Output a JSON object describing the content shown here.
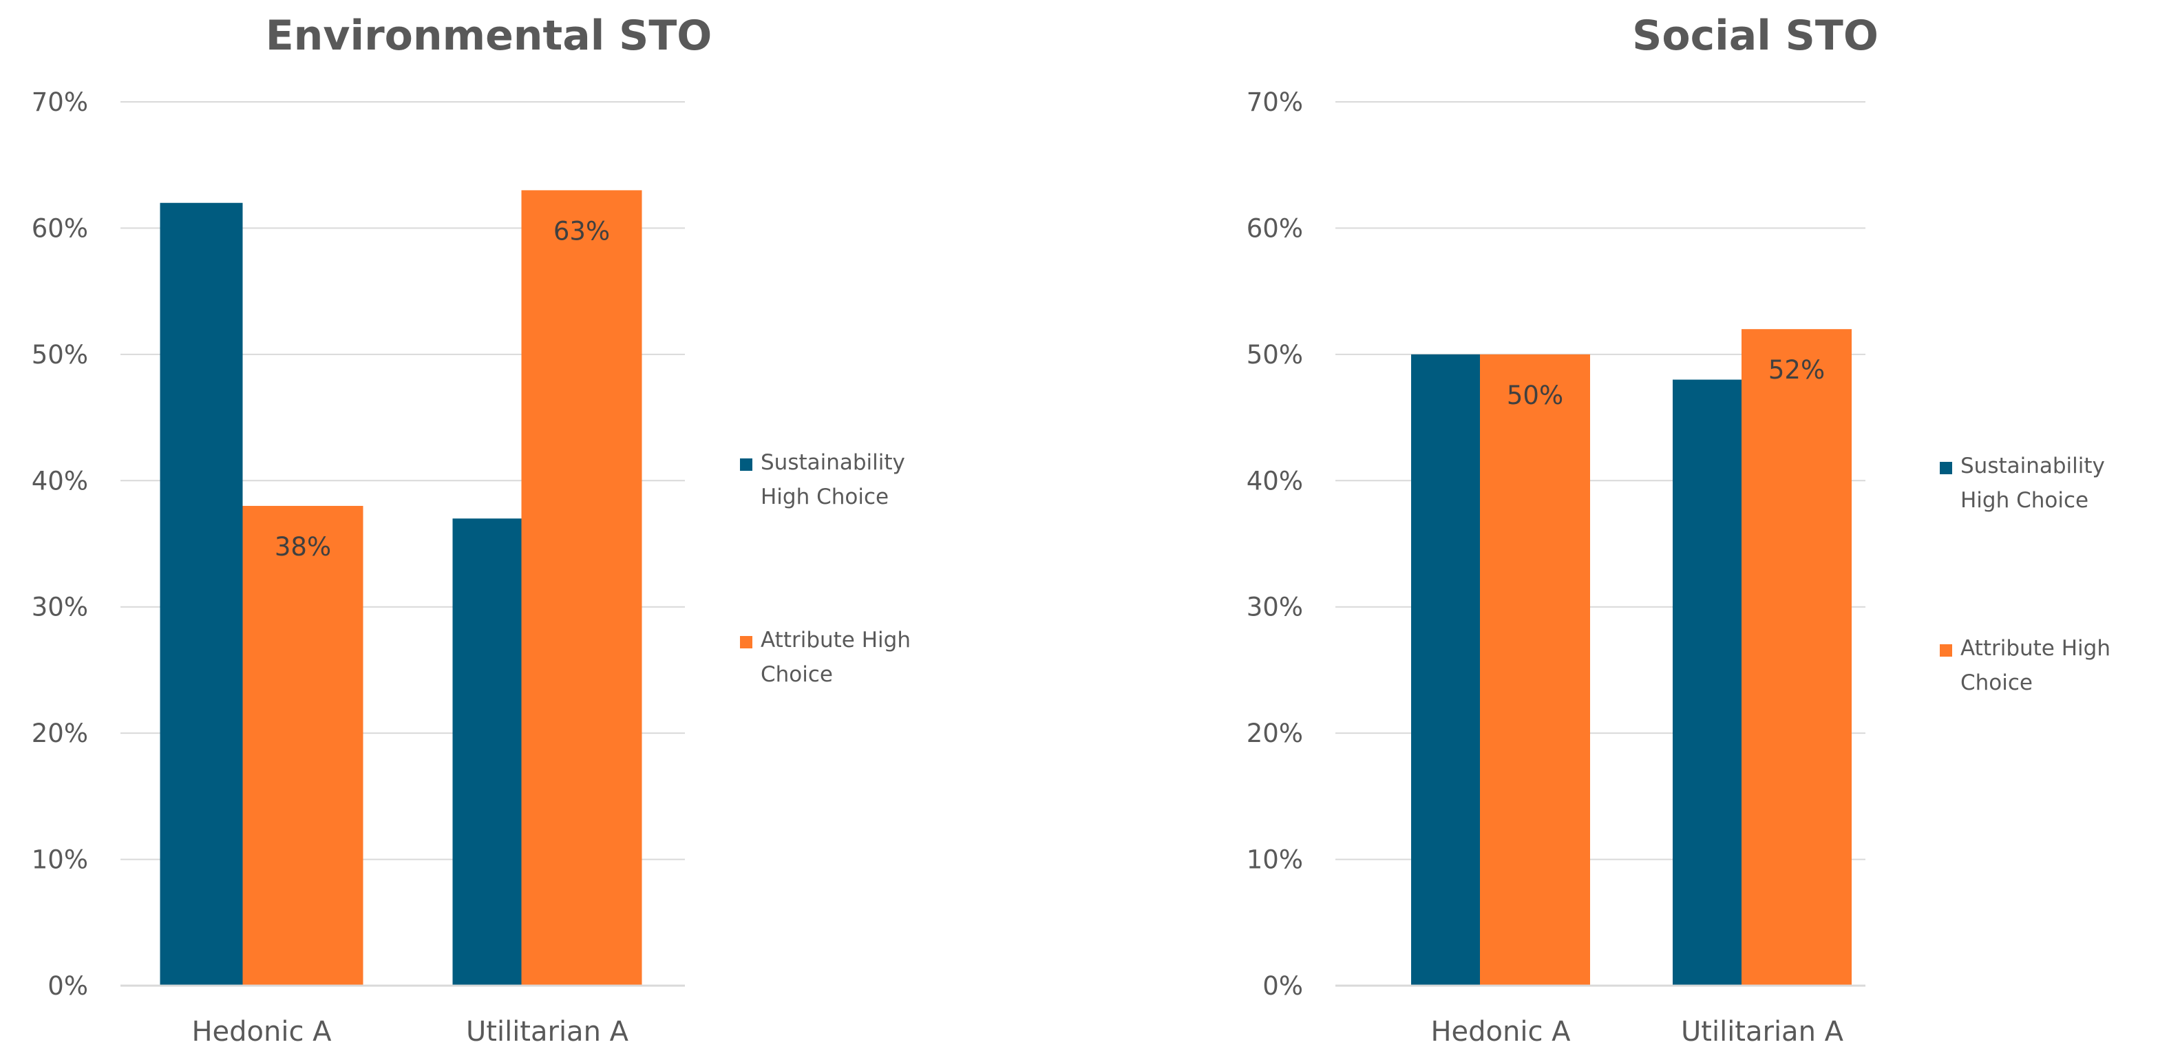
{
  "chart_data": [
    {
      "type": "bar",
      "title": "Environmental STO",
      "categories": [
        "Hedonic A",
        "Utilitarian A"
      ],
      "series": [
        {
          "name": "Sustainability High Choice",
          "values": [
            62,
            37
          ],
          "color": "#005b7f"
        },
        {
          "name": "Attribute High Choice",
          "values": [
            38,
            63
          ],
          "color": "#ff7a2a"
        }
      ],
      "data_labels": [
        {
          "series": 1,
          "category": 0,
          "text": "38%"
        },
        {
          "series": 1,
          "category": 1,
          "text": "63%"
        }
      ],
      "ytick_labels": [
        "0%",
        "10%",
        "20%",
        "30%",
        "40%",
        "50%",
        "60%",
        "70%"
      ],
      "ylim": [
        0,
        70
      ],
      "grid": true,
      "legend": {
        "position": "right",
        "entries": [
          [
            "Sustainability",
            "High Choice"
          ],
          [
            "Attribute High",
            "Choice"
          ]
        ]
      },
      "xlabel": "",
      "ylabel": ""
    },
    {
      "type": "bar",
      "title": "Social STO",
      "categories": [
        "Hedonic A",
        "Utilitarian A"
      ],
      "series": [
        {
          "name": "Sustainability High Choice",
          "values": [
            50,
            48
          ],
          "color": "#005b7f"
        },
        {
          "name": "Attribute High Choice",
          "values": [
            50,
            52
          ],
          "color": "#ff7a2a"
        }
      ],
      "data_labels": [
        {
          "series": 1,
          "category": 0,
          "text": "50%"
        },
        {
          "series": 1,
          "category": 1,
          "text": "52%"
        }
      ],
      "ytick_labels": [
        "0%",
        "10%",
        "20%",
        "30%",
        "40%",
        "50%",
        "60%",
        "70%"
      ],
      "ylim": [
        0,
        70
      ],
      "grid": true,
      "legend": {
        "position": "right",
        "entries": [
          [
            "Sustainability",
            "High Choice"
          ],
          [
            "Attribute High",
            "Choice"
          ]
        ]
      },
      "xlabel": "",
      "ylabel": ""
    }
  ]
}
